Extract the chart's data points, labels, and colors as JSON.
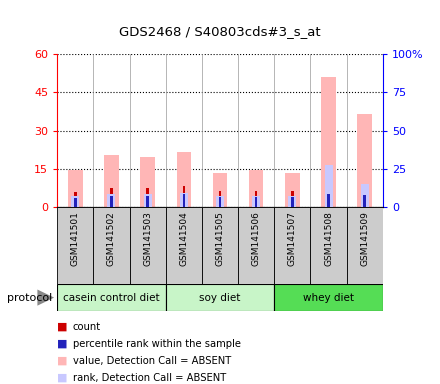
{
  "title": "GDS2468 / S40803cds#3_s_at",
  "samples": [
    "GSM141501",
    "GSM141502",
    "GSM141503",
    "GSM141504",
    "GSM141505",
    "GSM141506",
    "GSM141507",
    "GSM141508",
    "GSM141509"
  ],
  "group_boundaries": [
    {
      "start": 0,
      "end": 2,
      "label": "casein control diet",
      "color": "#c8f5c8"
    },
    {
      "start": 3,
      "end": 5,
      "label": "soy diet",
      "color": "#c8f5c8"
    },
    {
      "start": 6,
      "end": 8,
      "label": "whey diet",
      "color": "#55dd55"
    }
  ],
  "absent_value": [
    14.5,
    20.5,
    19.5,
    21.5,
    13.5,
    14.5,
    13.5,
    51.0,
    36.5
  ],
  "absent_rank": [
    7.5,
    8.5,
    8.5,
    9.5,
    7.5,
    7.5,
    7.5,
    27.5,
    15.5
  ],
  "count": [
    6.0,
    7.5,
    7.5,
    8.5,
    6.5,
    6.5,
    6.5,
    8.5,
    8.0
  ],
  "pct_rank": [
    6.0,
    7.5,
    7.5,
    8.5,
    6.5,
    6.5,
    6.5,
    8.5,
    8.0
  ],
  "ylim_left": [
    0,
    60
  ],
  "ylim_right": [
    0,
    100
  ],
  "yticks_left": [
    0,
    15,
    30,
    45,
    60
  ],
  "ytick_labels_left": [
    "0",
    "15",
    "30",
    "45",
    "60"
  ],
  "yticks_right": [
    0,
    25,
    50,
    75,
    100
  ],
  "ytick_labels_right": [
    "0",
    "25",
    "50",
    "75",
    "100%"
  ],
  "color_absent_value": "#ffb6b6",
  "color_absent_rank": "#c8c8ff",
  "color_count": "#cc0000",
  "color_pct_rank": "#2222bb",
  "legend_items": [
    {
      "label": "count",
      "color": "#cc0000"
    },
    {
      "label": "percentile rank within the sample",
      "color": "#2222bb"
    },
    {
      "label": "value, Detection Call = ABSENT",
      "color": "#ffb6b6"
    },
    {
      "label": "rank, Detection Call = ABSENT",
      "color": "#c8c8ff"
    }
  ],
  "protocol_label": "protocol",
  "sample_box_color": "#cccccc",
  "plot_bg": "#ffffff"
}
